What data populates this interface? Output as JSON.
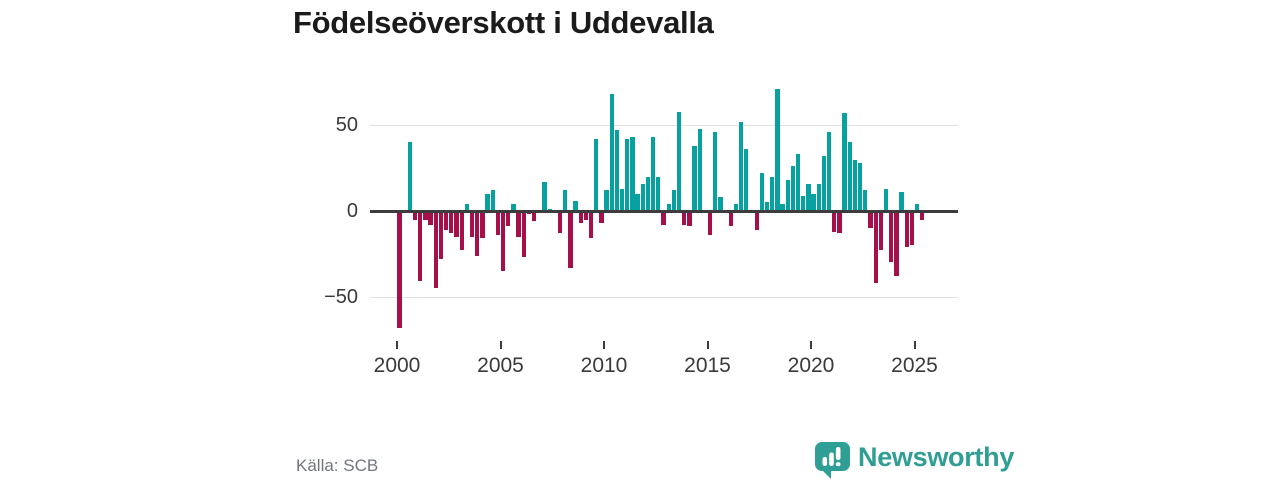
{
  "title": "Födelseöverskott i Uddevalla",
  "source": "Källa: SCB",
  "branding": {
    "name": "Newsworthy",
    "icon": "bar-chart-speech-bubble-icon",
    "color": "#2f9e94"
  },
  "colors": {
    "positive_bar": "#07a1a0",
    "negative_bar": "#a5104b",
    "axis": "#3c3c3c",
    "grid": "#e1e1e1",
    "title_text": "#1b1b1b",
    "tick_text": "#3a3a3a",
    "muted_text": "#71767f",
    "background": "#ffffff"
  },
  "chart_data": {
    "type": "bar",
    "title": "Födelseöverskott i Uddevalla",
    "frequency": "quarterly",
    "x_start": "2000Q1",
    "x_end": "2025Q2",
    "xlabel": "",
    "ylabel": "",
    "ylim": [
      -75,
      75
    ],
    "yticks": [
      50,
      0,
      -50
    ],
    "ytick_labels": [
      "50",
      "0",
      "−50"
    ],
    "xticks": [
      2000,
      2005,
      2010,
      2015,
      2020,
      2025
    ],
    "xtick_labels": [
      "2000",
      "2005",
      "2010",
      "2015",
      "2020",
      "2025"
    ],
    "grid": "horizontal",
    "legend": false,
    "series": [
      {
        "name": "Födelseöverskott",
        "years": [
          2000,
          2001,
          2002,
          2003,
          2004,
          2005,
          2006,
          2007,
          2008,
          2009,
          2010,
          2011,
          2012,
          2013,
          2014,
          2015,
          2016,
          2017,
          2018,
          2019,
          2020,
          2021,
          2022,
          2023,
          2024,
          2025
        ],
        "values_by_year": {
          "2000": [
            -68,
            0,
            40,
            -5
          ],
          "2001": [
            -41,
            -5,
            -8,
            -45
          ],
          "2002": [
            -28,
            -11,
            -13,
            -15
          ],
          "2003": [
            -23,
            4,
            -15,
            -26
          ],
          "2004": [
            -16,
            10,
            12,
            -14
          ],
          "2005": [
            -35,
            -9,
            4,
            -15
          ],
          "2006": [
            -27,
            -2,
            -6,
            0
          ],
          "2007": [
            17,
            1,
            0,
            -13
          ],
          "2008": [
            12,
            -33,
            6,
            -7
          ],
          "2009": [
            -5,
            -16,
            42,
            -7
          ],
          "2010": [
            12,
            68,
            47,
            13
          ],
          "2011": [
            42,
            43,
            10,
            16
          ],
          "2012": [
            20,
            43,
            20,
            -8
          ],
          "2013": [
            4,
            12,
            58,
            -8
          ],
          "2014": [
            -9,
            38,
            48,
            0
          ],
          "2015": [
            -14,
            46,
            8,
            0
          ],
          "2016": [
            -9,
            4,
            52,
            36
          ],
          "2017": [
            0,
            -11,
            22,
            5
          ],
          "2018": [
            20,
            71,
            4,
            18
          ],
          "2019": [
            26,
            33,
            9,
            16
          ],
          "2020": [
            10,
            16,
            32,
            46
          ],
          "2021": [
            -12,
            -13,
            57,
            40
          ],
          "2022": [
            30,
            28,
            12,
            -10
          ],
          "2023": [
            -42,
            -23,
            13,
            -30
          ],
          "2024": [
            -38,
            11,
            -21,
            -20
          ],
          "2025": [
            4,
            -5
          ]
        }
      }
    ]
  }
}
